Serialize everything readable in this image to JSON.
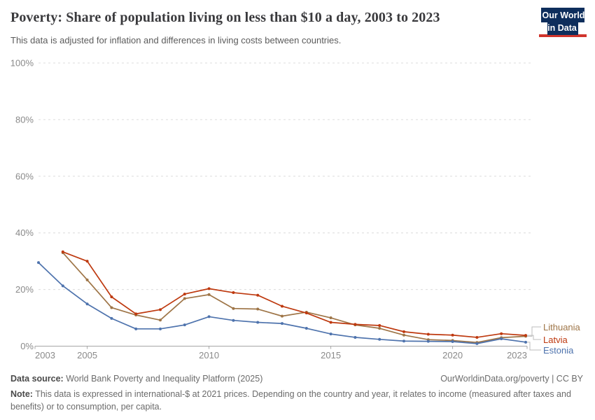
{
  "header": {
    "title": "Poverty: Share of population living on less than $10 a day, 2003 to 2023",
    "subtitle": "This data is adjusted for inflation and differences in living costs between countries.",
    "logo": {
      "line1": "Our World",
      "line2": "in Data",
      "bg_color": "#0e2e5c",
      "bar_color": "#d0342c"
    }
  },
  "chart_data": {
    "type": "line",
    "title": "Poverty: Share of population living on less than $10 a day, 2003 to 2023",
    "x": [
      2003,
      2004,
      2005,
      2006,
      2007,
      2008,
      2009,
      2010,
      2011,
      2012,
      2013,
      2014,
      2015,
      2016,
      2017,
      2018,
      2019,
      2020,
      2021,
      2022,
      2023
    ],
    "series": [
      {
        "name": "Lithuania",
        "color": "#9e7547",
        "values": [
          null,
          33.0,
          23.4,
          13.6,
          11.0,
          9.2,
          16.8,
          18.2,
          13.3,
          13.1,
          10.6,
          12.0,
          10.0,
          7.5,
          6.3,
          3.9,
          2.3,
          2.0,
          1.3,
          3.0,
          3.5
        ]
      },
      {
        "name": "Latvia",
        "color": "#be390f",
        "values": [
          null,
          33.3,
          30.0,
          17.4,
          11.4,
          12.9,
          18.4,
          20.3,
          18.9,
          18.0,
          14.1,
          11.7,
          8.4,
          7.7,
          7.3,
          5.1,
          4.2,
          3.9,
          3.1,
          4.4,
          3.8
        ]
      },
      {
        "name": "Estonia",
        "color": "#4e73ad",
        "values": [
          29.5,
          21.3,
          14.9,
          9.8,
          6.1,
          6.1,
          7.5,
          10.4,
          9.1,
          8.4,
          8.0,
          6.3,
          4.3,
          3.1,
          2.4,
          1.8,
          1.7,
          1.6,
          0.9,
          2.6,
          1.4
        ]
      }
    ],
    "ylim": [
      0,
      100
    ],
    "yticks": [
      0,
      20,
      40,
      60,
      80,
      100
    ],
    "y_tick_suffix": "%",
    "xticks": [
      2003,
      2005,
      2010,
      2015,
      2020,
      2023
    ],
    "grid": "horizontal-dashed",
    "legend_position": "right-of-line-ends",
    "xlabel": "",
    "ylabel": ""
  },
  "footer": {
    "data_source_label": "Data source:",
    "data_source_text": " World Bank Poverty and Inequality Platform (2025)",
    "url": "OurWorldinData.org/poverty",
    "separator": " | ",
    "license": "CC BY",
    "note_label": "Note:",
    "note_text": " This data is expressed in international-$ at 2021 prices. Depending on the country and year, it relates to income (measured after taxes and benefits) or to consumption, per capita."
  }
}
